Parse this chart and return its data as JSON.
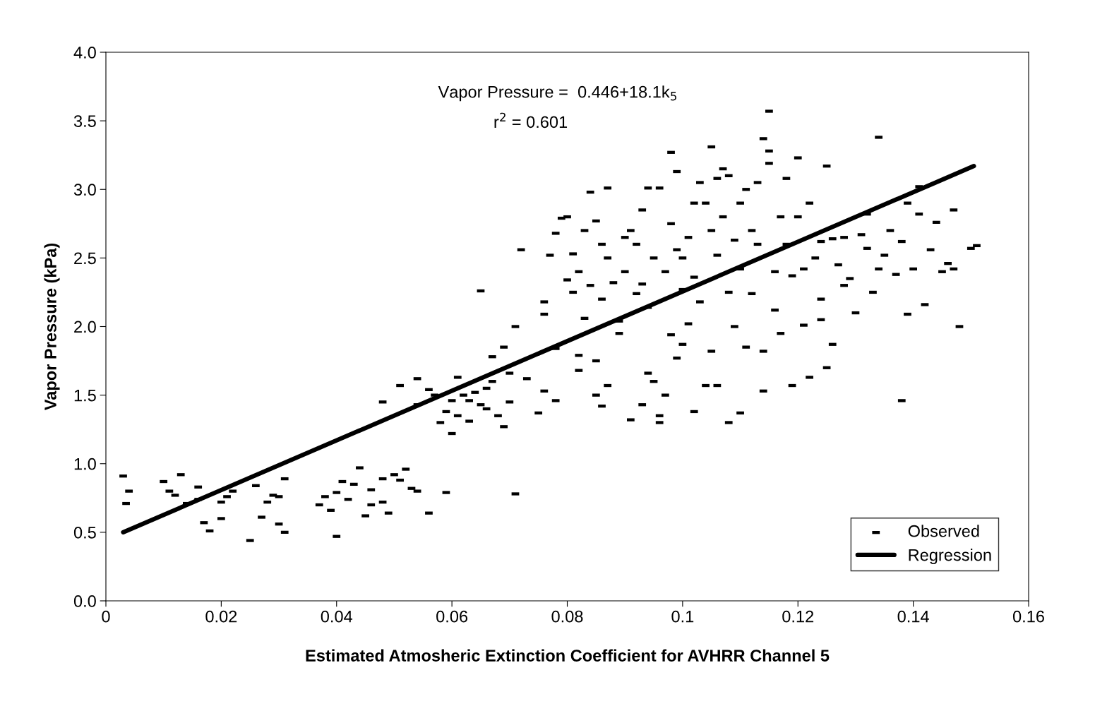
{
  "chart_data": {
    "type": "scatter",
    "xlabel": "Estimated Atmosheric Extinction Coefficient for AVHRR Channel 5",
    "ylabel": "Vapor Pressure (kPa)",
    "annotations": [
      "Vapor Pressure =  0.446+18.1k$_{5}$",
      "r$^{2}$ = 0.601"
    ],
    "xlim": [
      0,
      0.16
    ],
    "xticks": [
      0,
      0.02,
      0.04,
      0.06,
      0.08,
      0.1,
      0.12,
      0.14,
      0.16
    ],
    "ylim": [
      0,
      4
    ],
    "yticks": [
      {
        "value": 0,
        "label": "0.0"
      },
      {
        "value": 0.5,
        "label": "0.5"
      },
      {
        "value": 1,
        "label": "1.0"
      },
      {
        "value": 1.5,
        "label": "1.5"
      },
      {
        "value": 2,
        "label": "2.0"
      },
      {
        "value": 2.5,
        "label": "2.5"
      },
      {
        "value": 3,
        "label": "3.0"
      },
      {
        "value": 3.5,
        "label": "3.5"
      },
      {
        "value": 4,
        "label": "4.0"
      }
    ],
    "legend": "bottom right",
    "series": [
      {
        "name": "Observed",
        "color": "#000000",
        "x": [
          0.003,
          0.004,
          0.0035,
          0.01,
          0.011,
          0.012,
          0.013,
          0.014,
          0.016,
          0.016,
          0.017,
          0.018,
          0.02,
          0.02,
          0.021,
          0.022,
          0.025,
          0.026,
          0.027,
          0.028,
          0.029,
          0.03,
          0.031,
          0.031,
          0.03,
          0.037,
          0.038,
          0.039,
          0.04,
          0.04,
          0.041,
          0.042,
          0.043,
          0.044,
          0.045,
          0.046,
          0.046,
          0.048,
          0.048,
          0.049,
          0.05,
          0.051,
          0.052,
          0.053,
          0.054,
          0.056,
          0.059,
          0.048,
          0.051,
          0.054,
          0.054,
          0.056,
          0.057,
          0.058,
          0.059,
          0.06,
          0.06,
          0.061,
          0.061,
          0.062,
          0.063,
          0.063,
          0.064,
          0.065,
          0.065,
          0.066,
          0.066,
          0.067,
          0.067,
          0.068,
          0.069,
          0.069,
          0.07,
          0.07,
          0.071,
          0.071,
          0.072,
          0.073,
          0.075,
          0.076,
          0.076,
          0.076,
          0.077,
          0.078,
          0.078,
          0.078,
          0.079,
          0.08,
          0.08,
          0.081,
          0.081,
          0.082,
          0.082,
          0.082,
          0.083,
          0.083,
          0.084,
          0.084,
          0.085,
          0.085,
          0.085,
          0.086,
          0.086,
          0.086,
          0.087,
          0.087,
          0.087,
          0.088,
          0.089,
          0.089,
          0.09,
          0.09,
          0.091,
          0.091,
          0.092,
          0.092,
          0.093,
          0.093,
          0.093,
          0.094,
          0.094,
          0.094,
          0.095,
          0.095,
          0.096,
          0.096,
          0.096,
          0.097,
          0.097,
          0.098,
          0.098,
          0.098,
          0.099,
          0.099,
          0.099,
          0.1,
          0.1,
          0.1,
          0.101,
          0.101,
          0.102,
          0.102,
          0.102,
          0.103,
          0.103,
          0.104,
          0.104,
          0.105,
          0.105,
          0.105,
          0.106,
          0.106,
          0.106,
          0.107,
          0.107,
          0.108,
          0.108,
          0.108,
          0.109,
          0.109,
          0.11,
          0.11,
          0.11,
          0.111,
          0.111,
          0.112,
          0.112,
          0.113,
          0.113,
          0.114,
          0.114,
          0.114,
          0.115,
          0.115,
          0.115,
          0.116,
          0.116,
          0.117,
          0.117,
          0.118,
          0.118,
          0.119,
          0.119,
          0.12,
          0.12,
          0.121,
          0.121,
          0.122,
          0.122,
          0.123,
          0.124,
          0.124,
          0.125,
          0.125,
          0.126,
          0.126,
          0.127,
          0.128,
          0.129,
          0.13,
          0.131,
          0.132,
          0.133,
          0.134,
          0.134,
          0.135,
          0.136,
          0.137,
          0.138,
          0.138,
          0.139,
          0.139,
          0.14,
          0.141,
          0.141,
          0.142,
          0.143,
          0.144,
          0.145,
          0.146,
          0.147,
          0.147,
          0.148,
          0.15,
          0.151,
          0.132,
          0.128,
          0.124
        ],
        "values": [
          0.91,
          0.8,
          0.71,
          0.87,
          0.8,
          0.77,
          0.92,
          0.71,
          0.83,
          0.74,
          0.57,
          0.51,
          0.6,
          0.72,
          0.76,
          0.8,
          0.44,
          0.84,
          0.61,
          0.72,
          0.77,
          0.56,
          0.89,
          0.5,
          0.76,
          0.7,
          0.76,
          0.66,
          0.47,
          0.79,
          0.87,
          0.74,
          0.85,
          0.97,
          0.62,
          0.7,
          0.81,
          0.89,
          0.72,
          0.64,
          0.92,
          0.88,
          0.96,
          0.82,
          0.8,
          0.64,
          0.79,
          1.45,
          1.57,
          1.62,
          1.43,
          1.54,
          1.5,
          1.3,
          1.38,
          1.22,
          1.46,
          1.63,
          1.35,
          1.5,
          1.31,
          1.46,
          1.52,
          2.26,
          1.43,
          1.55,
          1.4,
          1.78,
          1.6,
          1.35,
          1.85,
          1.27,
          1.66,
          1.45,
          2.0,
          0.78,
          2.56,
          1.62,
          1.37,
          1.53,
          2.18,
          2.09,
          2.52,
          1.84,
          1.46,
          2.68,
          2.79,
          2.8,
          2.34,
          2.25,
          2.53,
          1.79,
          1.68,
          2.4,
          2.7,
          2.06,
          2.98,
          2.3,
          2.77,
          1.75,
          1.5,
          1.42,
          2.6,
          2.2,
          3.01,
          2.5,
          1.57,
          2.32,
          2.04,
          1.95,
          2.4,
          2.65,
          2.7,
          1.32,
          2.6,
          2.24,
          1.43,
          2.85,
          2.31,
          3.01,
          1.66,
          2.14,
          1.6,
          2.5,
          1.35,
          1.3,
          3.01,
          1.5,
          2.4,
          1.94,
          3.27,
          2.75,
          3.13,
          1.77,
          2.56,
          1.87,
          2.27,
          2.5,
          2.65,
          2.02,
          1.38,
          2.9,
          2.36,
          3.05,
          2.18,
          2.9,
          1.57,
          1.82,
          2.7,
          3.31,
          3.08,
          2.52,
          1.57,
          3.15,
          2.8,
          2.25,
          3.1,
          1.3,
          2.63,
          2.0,
          1.37,
          2.9,
          2.42,
          1.85,
          3.0,
          2.7,
          2.24,
          3.05,
          2.6,
          3.37,
          1.53,
          1.82,
          3.28,
          3.19,
          3.57,
          2.4,
          2.12,
          2.8,
          1.95,
          3.08,
          2.6,
          2.37,
          1.57,
          2.8,
          3.23,
          2.42,
          2.01,
          2.9,
          1.63,
          2.5,
          2.05,
          2.2,
          1.7,
          3.17,
          1.87,
          2.64,
          2.45,
          2.3,
          2.35,
          2.1,
          2.67,
          2.82,
          2.25,
          3.38,
          2.42,
          2.52,
          2.7,
          2.38,
          1.46,
          2.62,
          2.09,
          2.9,
          2.42,
          2.82,
          3.02,
          2.16,
          2.56,
          2.76,
          2.4,
          2.46,
          2.85,
          2.42,
          2.0,
          2.57,
          2.59,
          2.57,
          2.65,
          2.62
        ]
      },
      {
        "name": "Regression",
        "type": "line",
        "color": "#000000",
        "line_style": "solid",
        "x": [
          0.003,
          0.1505
        ],
        "values": [
          0.5,
          3.17
        ]
      }
    ]
  }
}
